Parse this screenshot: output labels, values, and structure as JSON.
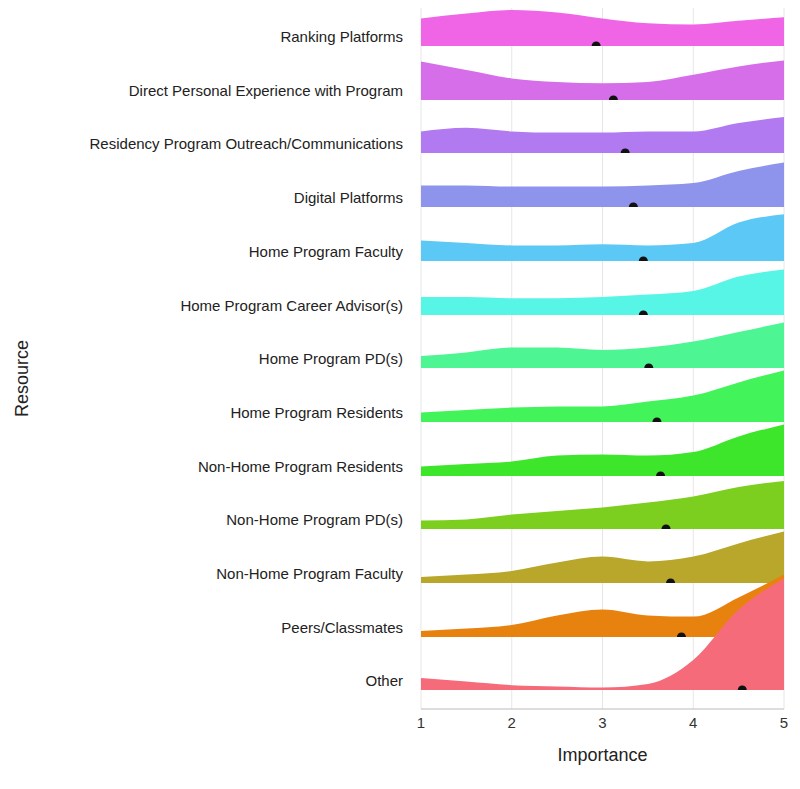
{
  "chart_data": {
    "type": "ridgeline",
    "x_label": "Importance",
    "y_label": "Resource",
    "xlim": [
      1,
      5
    ],
    "xticks": [
      1,
      2,
      3,
      4,
      5
    ],
    "grid": true,
    "density_x": [
      1,
      1.5,
      2,
      2.5,
      3,
      3.5,
      4,
      4.5,
      5
    ],
    "density_lim": [
      0,
      1
    ],
    "series": [
      {
        "name": "Ranking Platforms",
        "color": "#f064e6",
        "mean": 2.93,
        "density": [
          0.23,
          0.27,
          0.3,
          0.28,
          0.23,
          0.19,
          0.18,
          0.21,
          0.24
        ]
      },
      {
        "name": "Direct Personal Experience with Program",
        "color": "#d56ee8",
        "mean": 3.12,
        "density": [
          0.32,
          0.25,
          0.18,
          0.15,
          0.14,
          0.15,
          0.21,
          0.28,
          0.33
        ]
      },
      {
        "name": "Residency Program Outreach/Communications",
        "color": "#b27af0",
        "mean": 3.25,
        "density": [
          0.18,
          0.21,
          0.18,
          0.17,
          0.17,
          0.18,
          0.18,
          0.25,
          0.3
        ]
      },
      {
        "name": "Digital Platforms",
        "color": "#8e93ec",
        "mean": 3.34,
        "density": [
          0.18,
          0.18,
          0.17,
          0.17,
          0.17,
          0.18,
          0.2,
          0.3,
          0.37
        ]
      },
      {
        "name": "Home Program Faculty",
        "color": "#5bc8f5",
        "mean": 3.45,
        "density": [
          0.17,
          0.15,
          0.13,
          0.13,
          0.14,
          0.13,
          0.15,
          0.32,
          0.39
        ]
      },
      {
        "name": "Home Program Career Advisor(s)",
        "color": "#57f5e6",
        "mean": 3.45,
        "density": [
          0.15,
          0.15,
          0.14,
          0.14,
          0.15,
          0.17,
          0.2,
          0.32,
          0.38
        ]
      },
      {
        "name": "Home Program PD(s)",
        "color": "#4ef593",
        "mean": 3.51,
        "density": [
          0.1,
          0.13,
          0.17,
          0.17,
          0.15,
          0.17,
          0.22,
          0.3,
          0.38
        ]
      },
      {
        "name": "Home Program Residents",
        "color": "#43f35a",
        "mean": 3.6,
        "density": [
          0.08,
          0.1,
          0.12,
          0.13,
          0.13,
          0.17,
          0.22,
          0.33,
          0.43
        ]
      },
      {
        "name": "Non-Home Program Residents",
        "color": "#3de52b",
        "mean": 3.64,
        "density": [
          0.08,
          0.1,
          0.12,
          0.17,
          0.18,
          0.17,
          0.2,
          0.33,
          0.43
        ]
      },
      {
        "name": "Non-Home Program PD(s)",
        "color": "#7ccf1f",
        "mean": 3.7,
        "density": [
          0.07,
          0.08,
          0.12,
          0.15,
          0.18,
          0.22,
          0.27,
          0.35,
          0.4
        ]
      },
      {
        "name": "Non-Home Program Faculty",
        "color": "#b8a72a",
        "mean": 3.75,
        "density": [
          0.05,
          0.07,
          0.1,
          0.17,
          0.22,
          0.18,
          0.22,
          0.33,
          0.43
        ]
      },
      {
        "name": "Peers/Classmates",
        "color": "#e8820f",
        "mean": 3.87,
        "density": [
          0.05,
          0.07,
          0.1,
          0.18,
          0.23,
          0.18,
          0.17,
          0.33,
          0.52
        ]
      },
      {
        "name": "Other",
        "color": "#f56b7a",
        "mean": 4.54,
        "density": [
          0.1,
          0.07,
          0.04,
          0.03,
          0.02,
          0.05,
          0.25,
          0.67,
          0.93
        ]
      }
    ]
  }
}
